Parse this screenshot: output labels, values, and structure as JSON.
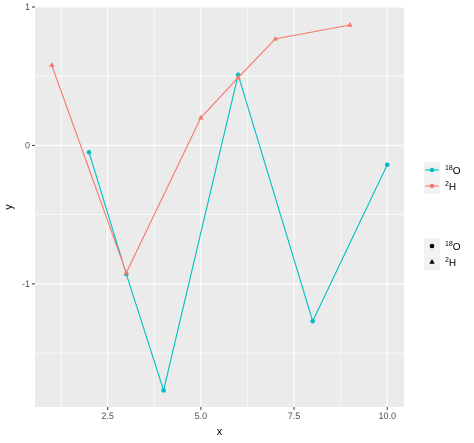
{
  "chart_data": {
    "type": "line",
    "xlabel": "x",
    "ylabel": "y",
    "xlim": [
      0.55,
      10.45
    ],
    "ylim": [
      -1.89,
      1.0
    ],
    "x_ticks": [
      2.5,
      5.0,
      7.5,
      10.0
    ],
    "x_tick_labels": [
      "2.5",
      "5.0",
      "7.5",
      "10.0"
    ],
    "y_ticks": [
      -1,
      0,
      1
    ],
    "y_tick_labels": [
      "-1",
      "0",
      "1"
    ],
    "grid": true,
    "legend_position": "right",
    "series": [
      {
        "key": "O18",
        "color": "#00BFC4",
        "shape": "circle",
        "x": [
          2,
          3,
          4,
          6,
          8,
          10
        ],
        "y": [
          -0.05,
          -0.93,
          -1.77,
          0.51,
          -1.27,
          -0.14
        ]
      },
      {
        "key": "H2",
        "color": "#F8766D",
        "shape": "triangle",
        "x": [
          1,
          3,
          5,
          6,
          7,
          9
        ],
        "y": [
          0.58,
          -0.92,
          0.2,
          0.49,
          0.77,
          0.87
        ]
      }
    ],
    "legends": [
      {
        "type": "colour",
        "entries": [
          {
            "sup": "18",
            "base": "O",
            "color": "#00BFC4"
          },
          {
            "sup": "2",
            "base": "H",
            "color": "#F8766D"
          }
        ]
      },
      {
        "type": "shape",
        "entries": [
          {
            "sup": "18",
            "base": "O",
            "shape": "circle"
          },
          {
            "sup": "2",
            "base": "H",
            "shape": "triangle"
          }
        ]
      }
    ]
  }
}
